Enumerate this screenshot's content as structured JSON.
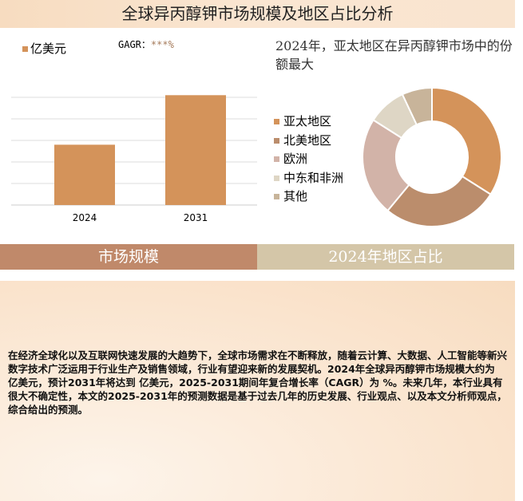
{
  "title": "全球异丙醇钾市场规模及地区占比分析",
  "cagr_label": "GAGR：",
  "cagr_value": "***%",
  "chart_data": [
    {
      "type": "bar",
      "unit_legend": "亿美元",
      "categories": [
        "2024",
        "2031"
      ],
      "values": [
        2.8,
        5.1
      ],
      "ylim": [
        0,
        5
      ],
      "grid": true,
      "color": "#d4935a"
    },
    {
      "type": "pie",
      "donut": true,
      "title": "2024年，亚太地区在异丙醇钾市场中的份额最大",
      "legend_position": "left",
      "slices": [
        {
          "name": "亚太地区",
          "value": 34,
          "color": "#d4935a"
        },
        {
          "name": "北美地区",
          "value": 27,
          "color": "#bb8d6c"
        },
        {
          "name": "欧洲",
          "value": 23,
          "color": "#d2b3a8"
        },
        {
          "name": "中东和非洲",
          "value": 9,
          "color": "#ded6c5"
        },
        {
          "name": "其他",
          "value": 7,
          "color": "#c8b49a"
        }
      ]
    }
  ],
  "tabs": [
    "市场规模",
    "2024年地区占比"
  ],
  "description": "在经济全球化以及互联网快速发展的大趋势下，全球市场需求在不断释放，随着云计算、大数据、人工智能等新兴数字技术广泛运用于行业生产及销售领域，行业有望迎来新的发展契机。2024年全球异丙醇钾市场规模大约为 亿美元，预计2031年将达到 亿美元，2025-2031期间年复合增长率（CAGR）为 %。未来几年，本行业具有很大不确定性，本文的2025-2031年的预测数据是基于过去几年的历史发展、行业观点、以及本文分析师观点，综合给出的预测。"
}
